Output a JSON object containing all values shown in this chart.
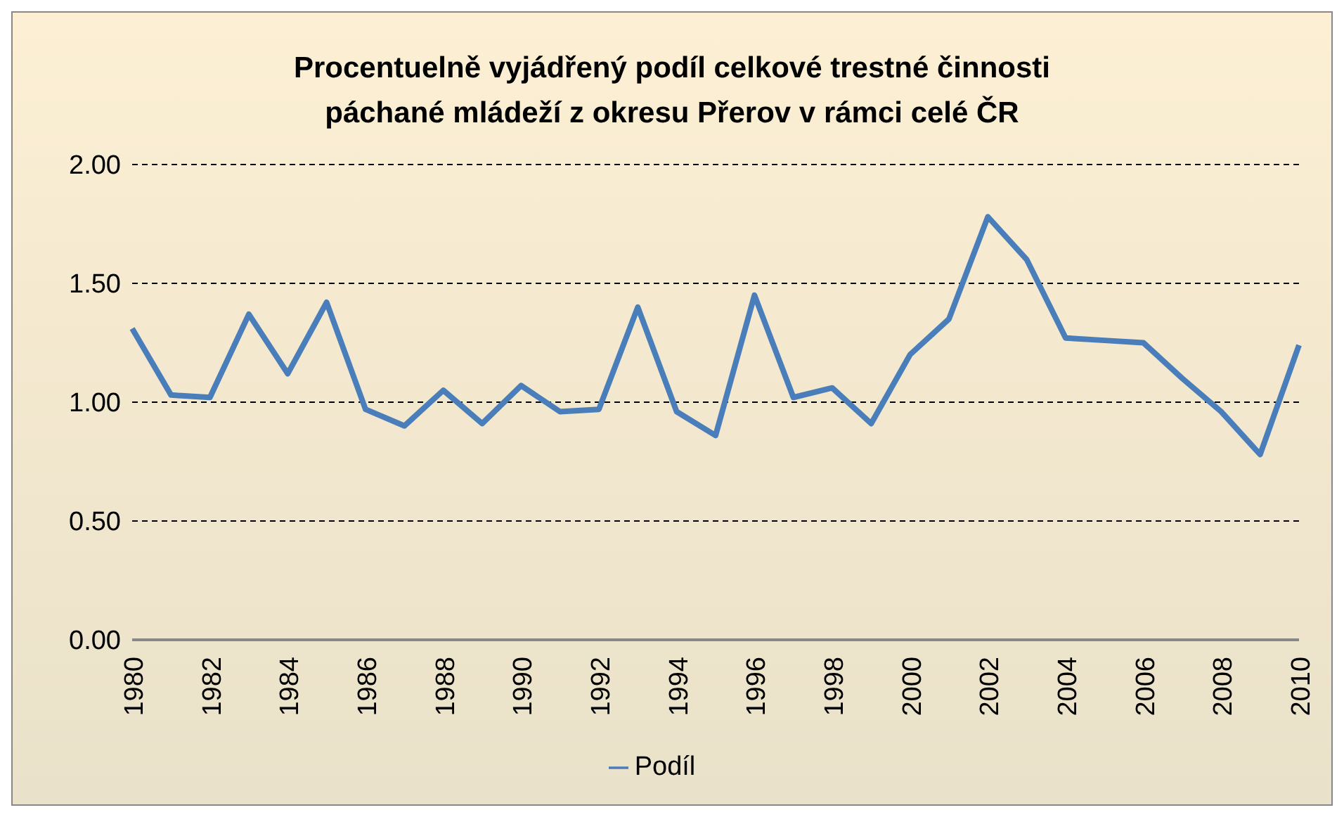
{
  "chart_data": {
    "type": "line",
    "title": "Procentuelně vyjádřený podíl celkové trestné činnosti\npáchané mládeží z okresu Přerov v rámci celé ČR",
    "categories": [
      "1980",
      null,
      "1982",
      null,
      "1984",
      null,
      "1986",
      null,
      "1988",
      null,
      "1990",
      null,
      "1992",
      null,
      "1994",
      null,
      "1996",
      null,
      "1998",
      null,
      "2000",
      null,
      "2002",
      null,
      "2004",
      null,
      "2006",
      null,
      "2008",
      null,
      "2010"
    ],
    "series": [
      {
        "name": "Podíl",
        "color": "#4a7ebb",
        "values": [
          1.31,
          1.03,
          1.02,
          1.37,
          1.12,
          1.42,
          0.97,
          0.9,
          1.05,
          0.91,
          1.07,
          0.96,
          0.97,
          1.4,
          0.96,
          0.86,
          1.45,
          1.02,
          1.06,
          0.91,
          1.2,
          1.35,
          1.78,
          1.6,
          1.27,
          1.26,
          1.25,
          1.1,
          0.96,
          0.78,
          1.24
        ]
      }
    ],
    "ylim": [
      0,
      2
    ],
    "yticks": [
      {
        "value": 0,
        "label": "0.00"
      },
      {
        "value": 0.5,
        "label": "0.50"
      },
      {
        "value": 1,
        "label": "1.00"
      },
      {
        "value": 1.5,
        "label": "1.50"
      },
      {
        "value": 2,
        "label": "2.00"
      }
    ],
    "grid": "y",
    "legend": "bottom",
    "marker": "none",
    "line_style": "solid"
  }
}
